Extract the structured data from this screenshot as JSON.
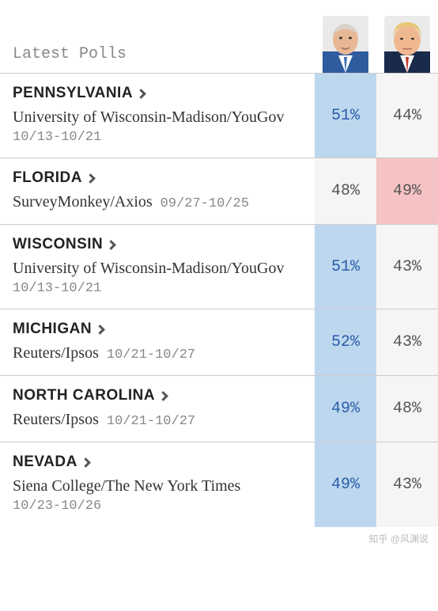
{
  "title": "Latest Polls",
  "colors": {
    "biden_highlight": "#bdd7ee",
    "trump_highlight": "#f5c3c3",
    "neutral_bg": "#f5f5f5",
    "biden_text": "#2a5da8",
    "trump_text": "#555555",
    "neutral_text": "#555555"
  },
  "candidates": {
    "biden": {
      "name": "Biden",
      "bg": "#2e5c9e",
      "skin": "#e8b895",
      "hair": "#d9d2c8"
    },
    "trump": {
      "name": "Trump",
      "bg": "#b83a3a",
      "skin": "#f0b890",
      "hair": "#e8c878"
    }
  },
  "rows": [
    {
      "state": "PENNSYLVANIA",
      "source": "University of Wisconsin-Madison/YouGov",
      "dates": "10/13-10/21",
      "date_inline": false,
      "biden": {
        "pct": "51%",
        "winner": true
      },
      "trump": {
        "pct": "44%",
        "winner": false
      }
    },
    {
      "state": "FLORIDA",
      "source": "SurveyMonkey/Axios",
      "dates": "09/27-10/25",
      "date_inline": true,
      "biden": {
        "pct": "48%",
        "winner": false
      },
      "trump": {
        "pct": "49%",
        "winner": true
      }
    },
    {
      "state": "WISCONSIN",
      "source": "University of Wisconsin-Madison/YouGov",
      "dates": "10/13-10/21",
      "date_inline": false,
      "biden": {
        "pct": "51%",
        "winner": true
      },
      "trump": {
        "pct": "43%",
        "winner": false
      }
    },
    {
      "state": "MICHIGAN",
      "source": "Reuters/Ipsos",
      "dates": "10/21-10/27",
      "date_inline": true,
      "biden": {
        "pct": "52%",
        "winner": true
      },
      "trump": {
        "pct": "43%",
        "winner": false
      }
    },
    {
      "state": "NORTH CAROLINA",
      "source": "Reuters/Ipsos",
      "dates": "10/21-10/27",
      "date_inline": true,
      "biden": {
        "pct": "49%",
        "winner": true
      },
      "trump": {
        "pct": "48%",
        "winner": false
      }
    },
    {
      "state": "NEVADA",
      "source": "Siena College/The New York Times",
      "dates": "10/23-10/26",
      "date_inline": false,
      "biden": {
        "pct": "49%",
        "winner": true
      },
      "trump": {
        "pct": "43%",
        "winner": false
      }
    }
  ],
  "watermark": "知乎 @风渊说"
}
